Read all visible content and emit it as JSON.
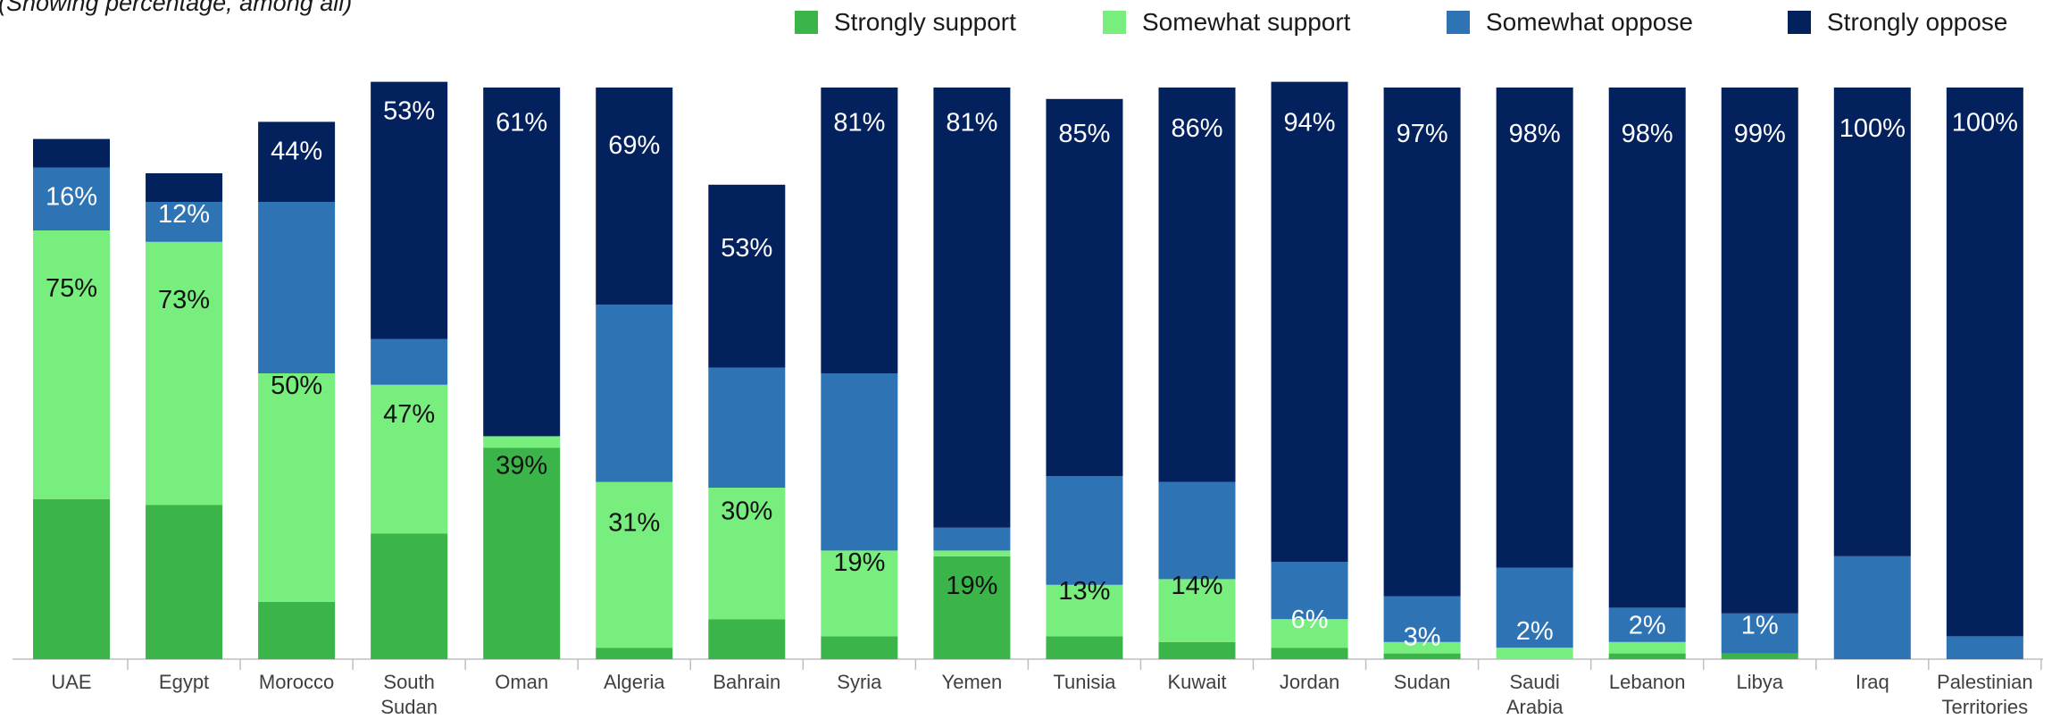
{
  "subtitle": "(Showing percentage, among all)",
  "colors": {
    "strongly_support": "#3bb54a",
    "somewhat_support": "#78ee7e",
    "somewhat_oppose": "#2e74b5",
    "strongly_oppose": "#03215c"
  },
  "legend": [
    {
      "label": "Strongly support",
      "color": "#3bb54a"
    },
    {
      "label": "Somewhat support",
      "color": "#78ee7e"
    },
    {
      "label": "Somewhat oppose",
      "color": "#2e74b5"
    },
    {
      "label": "Strongly oppose",
      "color": "#03215c"
    }
  ],
  "chart_data": {
    "type": "bar",
    "stacked": true,
    "subtitle": "(Showing percentage, among all)",
    "legend_position": "top-right",
    "grid": false,
    "ylim": [
      0,
      100
    ],
    "categories": [
      [
        "UAE"
      ],
      [
        "Egypt"
      ],
      [
        "Morocco"
      ],
      [
        "South",
        "Sudan"
      ],
      [
        "Oman"
      ],
      [
        "Algeria"
      ],
      [
        "Bahrain"
      ],
      [
        "Syria"
      ],
      [
        "Yemen"
      ],
      [
        "Tunisia"
      ],
      [
        "Kuwait"
      ],
      [
        "Jordan"
      ],
      [
        "Sudan"
      ],
      [
        "Saudi",
        "Arabia"
      ],
      [
        "Lebanon"
      ],
      [
        "Libya"
      ],
      [
        "Iraq"
      ],
      [
        "Palestinian",
        "Territories"
      ]
    ],
    "series": [
      {
        "name": "Strongly support",
        "values": [
          28,
          27,
          10,
          22,
          37,
          2,
          7,
          4,
          18,
          4,
          3,
          2,
          1,
          0,
          1,
          1,
          0,
          0
        ]
      },
      {
        "name": "Somewhat support",
        "values": [
          47,
          46,
          40,
          26,
          2,
          29,
          23,
          15,
          1,
          9,
          11,
          5,
          2,
          2,
          2,
          0,
          0,
          0
        ]
      },
      {
        "name": "Somewhat oppose",
        "values": [
          11,
          7,
          30,
          8,
          0,
          31,
          21,
          31,
          4,
          19,
          17,
          10,
          8,
          14,
          6,
          7,
          18,
          4
        ]
      },
      {
        "name": "Strongly oppose",
        "values": [
          5,
          5,
          14,
          45,
          61,
          38,
          32,
          50,
          77,
          66,
          69,
          84,
          89,
          84,
          91,
          92,
          82,
          96
        ]
      }
    ],
    "data_labels": [
      [
        {
          "text": "75%",
          "at": 65
        },
        {
          "text": "16%",
          "at": 81
        }
      ],
      [
        {
          "text": "73%",
          "at": 63
        },
        {
          "text": "12%",
          "at": 78
        }
      ],
      [
        {
          "text": "50%",
          "at": 48
        },
        {
          "text": "44%",
          "at": 89
        }
      ],
      [
        {
          "text": "47%",
          "at": 43
        },
        {
          "text": "53%",
          "at": 96
        }
      ],
      [
        {
          "text": "39%",
          "at": 34
        },
        {
          "text": "61%",
          "at": 94
        }
      ],
      [
        {
          "text": "31%",
          "at": 24
        },
        {
          "text": "69%",
          "at": 90
        }
      ],
      [
        {
          "text": "30%",
          "at": 26
        },
        {
          "text": "53%",
          "at": 72
        }
      ],
      [
        {
          "text": "19%",
          "at": 17
        },
        {
          "text": "81%",
          "at": 94
        }
      ],
      [
        {
          "text": "19%",
          "at": 13
        },
        {
          "text": "81%",
          "at": 94
        }
      ],
      [
        {
          "text": "13%",
          "at": 12
        },
        {
          "text": "85%",
          "at": 92
        }
      ],
      [
        {
          "text": "14%",
          "at": 13
        },
        {
          "text": "86%",
          "at": 93
        }
      ],
      [
        {
          "text": "6%",
          "at": 7
        },
        {
          "text": "94%",
          "at": 94
        }
      ],
      [
        {
          "text": "3%",
          "at": 4
        },
        {
          "text": "97%",
          "at": 92
        }
      ],
      [
        {
          "text": "2%",
          "at": 5
        },
        {
          "text": "98%",
          "at": 92
        }
      ],
      [
        {
          "text": "2%",
          "at": 6
        },
        {
          "text": "98%",
          "at": 92
        }
      ],
      [
        {
          "text": "1%",
          "at": 6
        },
        {
          "text": "99%",
          "at": 92
        }
      ],
      [
        {
          "text": "100%",
          "at": 93
        }
      ],
      [
        {
          "text": "100%",
          "at": 94
        }
      ]
    ]
  }
}
